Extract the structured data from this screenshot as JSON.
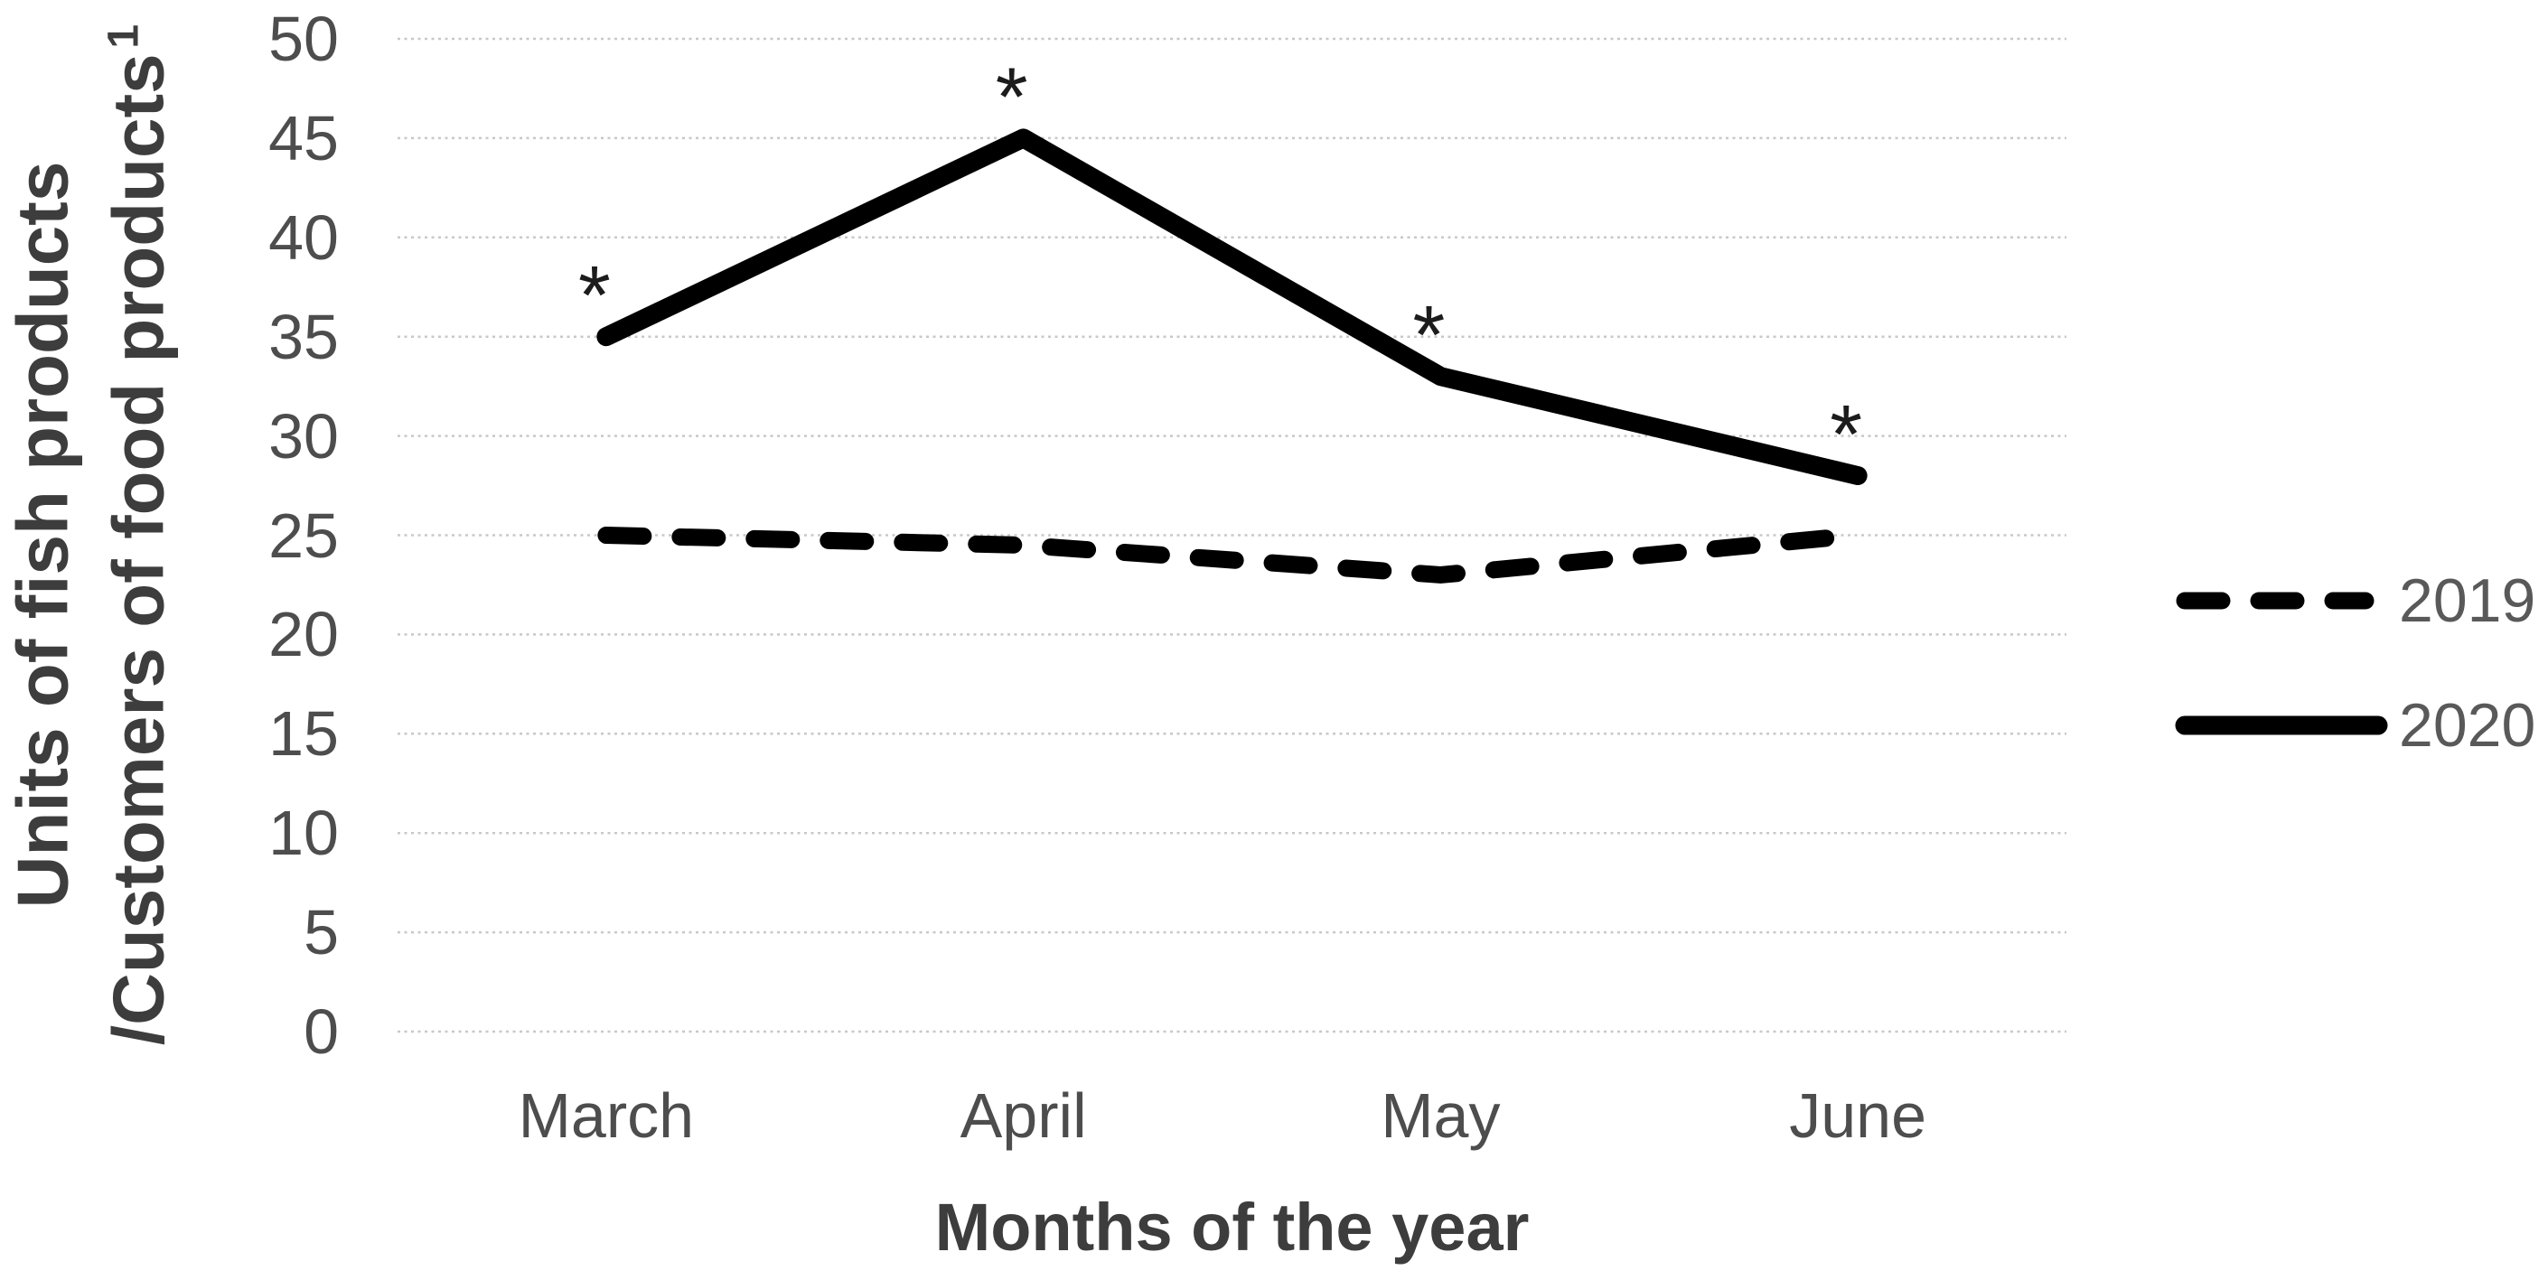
{
  "chart_data": {
    "type": "line",
    "categories": [
      "March",
      "April",
      "May",
      "June"
    ],
    "series": [
      {
        "name": "2019",
        "style": "dashed",
        "values": [
          25,
          24.5,
          23,
          25
        ],
        "point_annotations": [
          "",
          "",
          "",
          ""
        ]
      },
      {
        "name": "2020",
        "style": "solid",
        "values": [
          35,
          45,
          33,
          28
        ],
        "point_annotations": [
          "*",
          "*",
          "*",
          "*"
        ]
      }
    ],
    "xlabel": "Months of the year",
    "ylabel_line1": "Units of fish products",
    "ylabel_line2": "/Customers of food products",
    "ylabel_superscript": "1",
    "ylim": [
      0,
      50
    ],
    "yticks": [
      0,
      5,
      10,
      15,
      20,
      25,
      30,
      35,
      40,
      45,
      50
    ],
    "grid": "horizontal-dotted",
    "legend_position": "right",
    "colors": {
      "line": "#000000",
      "gridline": "#c8c8c8",
      "tick_label": "#4d4d4d",
      "axis_title": "#3d3d3d",
      "legend_text": "#595959",
      "annotation": "#1c1c1c",
      "background": "#ffffff"
    }
  }
}
